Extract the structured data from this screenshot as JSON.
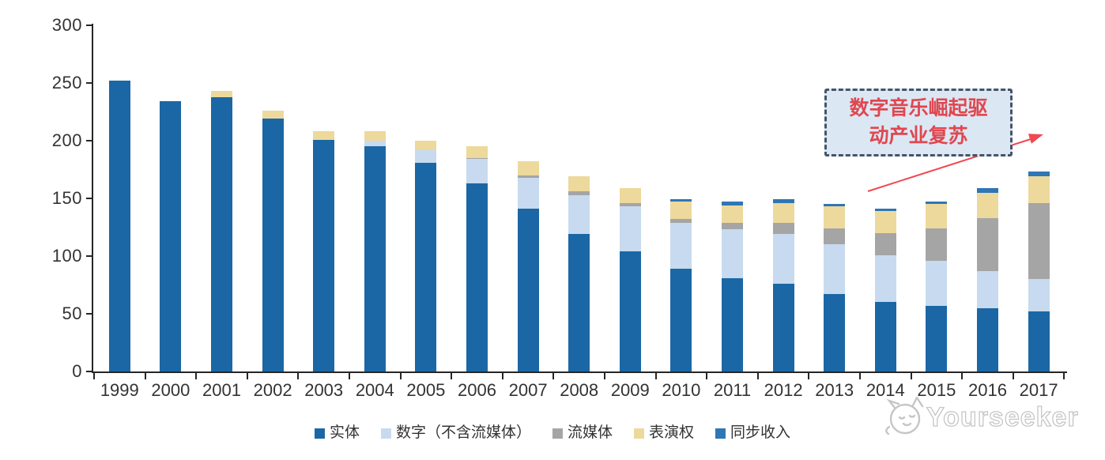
{
  "page": {
    "background": "#ffffff"
  },
  "chart_data": {
    "type": "bar",
    "stacked": true,
    "title": "",
    "xlabel": "",
    "ylabel": "",
    "categories": [
      "1999",
      "2000",
      "2001",
      "2002",
      "2003",
      "2004",
      "2005",
      "2006",
      "2007",
      "2008",
      "2009",
      "2010",
      "2011",
      "2012",
      "2013",
      "2014",
      "2015",
      "2016",
      "2017"
    ],
    "series": [
      {
        "name": "实体",
        "key": "physical",
        "color": "#1B67A5",
        "values": [
          252,
          234,
          238,
          219,
          201,
          195,
          181,
          163,
          141,
          119,
          104,
          89,
          81,
          76,
          67,
          60,
          57,
          55,
          52
        ]
      },
      {
        "name": "数字（不含流媒体）",
        "key": "digital-excl-streaming",
        "color": "#C7DAEF",
        "values": [
          0,
          0,
          0,
          0,
          0,
          5,
          11,
          21,
          27,
          34,
          39,
          40,
          42,
          43,
          43,
          41,
          39,
          32,
          28
        ]
      },
      {
        "name": "流媒体",
        "key": "streaming",
        "color": "#A5A5A5",
        "values": [
          0,
          0,
          0,
          0,
          0,
          0,
          0,
          1,
          2,
          3,
          3,
          3,
          6,
          10,
          14,
          19,
          28,
          46,
          66
        ]
      },
      {
        "name": "表演权",
        "key": "performance-rights",
        "color": "#EDD99C",
        "values": [
          0,
          0,
          5,
          7,
          7,
          8,
          8,
          10,
          12,
          13,
          13,
          15,
          15,
          17,
          19,
          19,
          21,
          22,
          23
        ]
      },
      {
        "name": "同步收入",
        "key": "sync-revenue",
        "color": "#2F76B5",
        "values": [
          0,
          0,
          0,
          0,
          0,
          0,
          0,
          0,
          0,
          0,
          0,
          2,
          3,
          3,
          2,
          2,
          2,
          4,
          4
        ]
      }
    ],
    "ylim": [
      0,
      300
    ],
    "yticks": [
      0,
      50,
      100,
      150,
      200,
      250,
      300
    ],
    "grid": false,
    "legend_position": "bottom"
  },
  "annotation": {
    "lines": [
      "数字音乐崛起驱",
      "动产业复苏"
    ],
    "text_color": "#E0474F",
    "border_color": "#44546A",
    "fill_color": "#DCE7F4",
    "arrow_color": "#F04850"
  },
  "watermark": {
    "text": "Yourseeker"
  }
}
